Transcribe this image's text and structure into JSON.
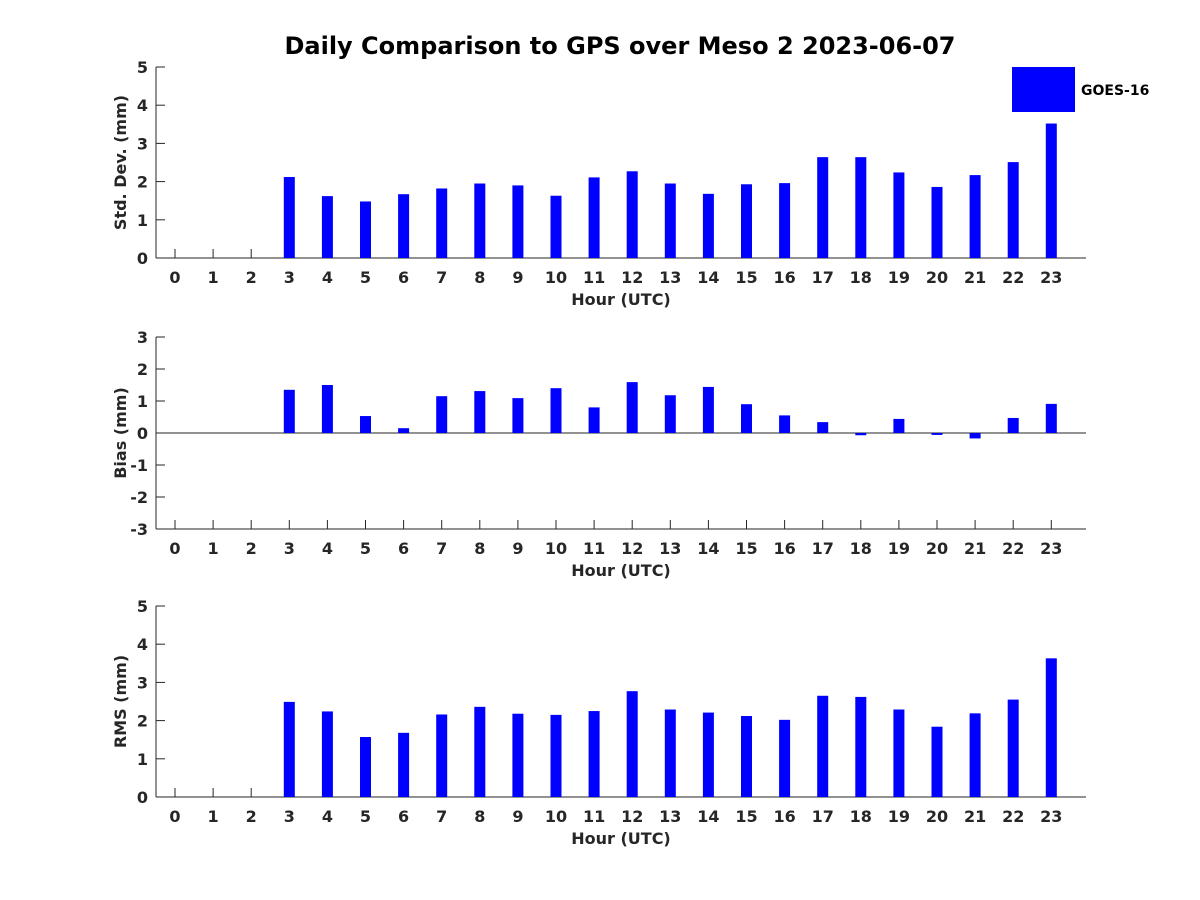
{
  "colors": {
    "bar": "#0000ff",
    "axis": "#262626",
    "background": "#ffffff"
  },
  "chart_data": {
    "type": "bar",
    "title": "Daily Comparison to GPS over Meso 2 2023-06-07",
    "legend": {
      "entries": [
        "GOES-16"
      ],
      "placement": "top-right"
    },
    "categories": [
      "0",
      "1",
      "2",
      "3",
      "4",
      "5",
      "6",
      "7",
      "8",
      "9",
      "10",
      "11",
      "12",
      "13",
      "14",
      "15",
      "16",
      "17",
      "18",
      "19",
      "20",
      "21",
      "22",
      "23"
    ],
    "panels": [
      {
        "id": "std",
        "type": "bar",
        "ylabel": "Std. Dev. (mm)",
        "xlabel": "Hour (UTC)",
        "ylim": [
          0,
          5
        ],
        "yticks": [
          "0",
          "1",
          "2",
          "3",
          "4",
          "5"
        ],
        "series": [
          {
            "name": "GOES-16",
            "values": [
              null,
              null,
              null,
              2.12,
              1.62,
              1.48,
              1.67,
              1.82,
              1.95,
              1.9,
              1.63,
              2.11,
              2.27,
              1.95,
              1.68,
              1.93,
              1.96,
              2.64,
              2.64,
              2.24,
              1.86,
              2.17,
              2.51,
              3.52
            ]
          }
        ]
      },
      {
        "id": "bias",
        "type": "bar",
        "ylabel": "Bias (mm)",
        "xlabel": "Hour (UTC)",
        "ylim": [
          -3,
          3
        ],
        "yticks": [
          "-3",
          "-2",
          "-1",
          "0",
          "1",
          "2",
          "3"
        ],
        "series": [
          {
            "name": "GOES-16",
            "values": [
              null,
              null,
              null,
              1.35,
              1.5,
              0.53,
              0.15,
              1.15,
              1.31,
              1.09,
              1.4,
              0.8,
              1.59,
              1.18,
              1.44,
              0.9,
              0.55,
              0.34,
              -0.07,
              0.44,
              -0.06,
              -0.17,
              0.47,
              0.91
            ]
          }
        ]
      },
      {
        "id": "rms",
        "type": "bar",
        "ylabel": "RMS (mm)",
        "xlabel": "Hour (UTC)",
        "ylim": [
          0,
          5
        ],
        "yticks": [
          "0",
          "1",
          "2",
          "3",
          "4",
          "5"
        ],
        "series": [
          {
            "name": "GOES-16",
            "values": [
              null,
              null,
              null,
              2.49,
              2.24,
              1.57,
              1.68,
              2.16,
              2.36,
              2.18,
              2.15,
              2.25,
              2.77,
              2.29,
              2.21,
              2.12,
              2.02,
              2.65,
              2.62,
              2.29,
              1.84,
              2.19,
              2.55,
              3.63
            ]
          }
        ]
      }
    ]
  }
}
